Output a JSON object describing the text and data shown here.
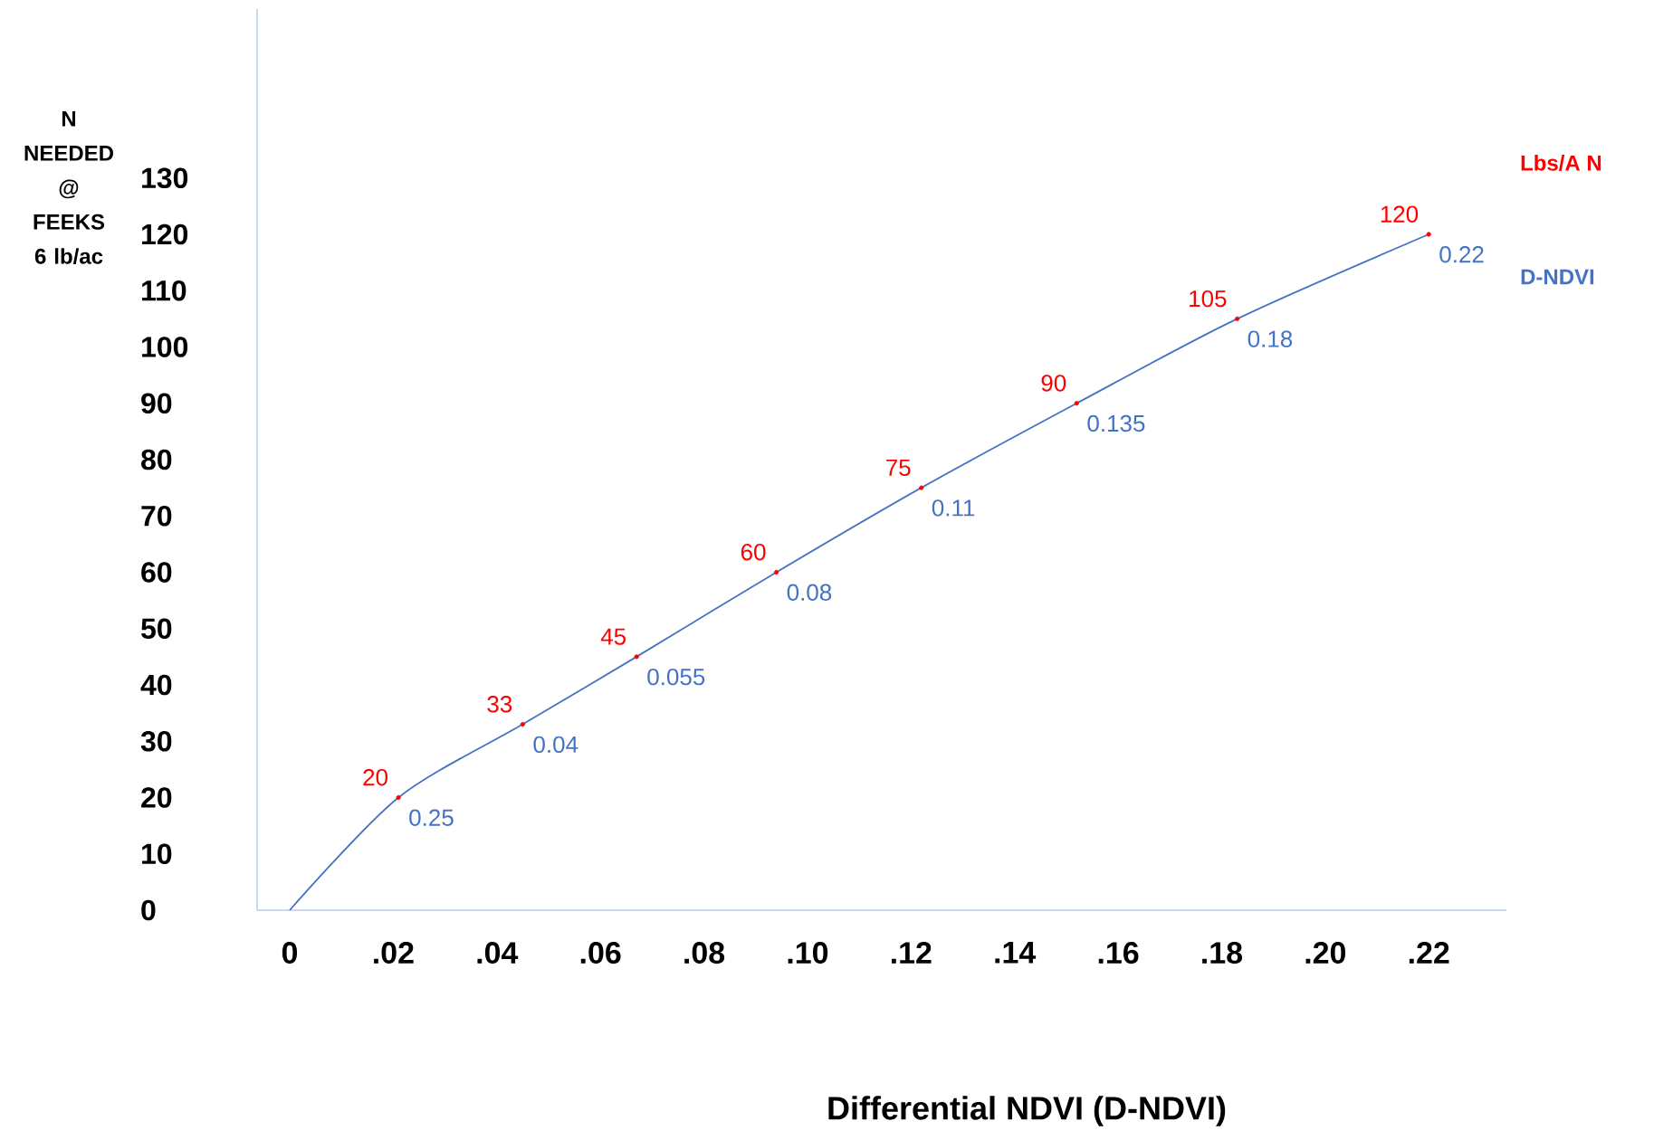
{
  "chart_data": {
    "type": "line",
    "xlabel": "Differential  NDVI    (D-NDVI)",
    "ylabel": "N NEEDED @ FEEKS 6 lb/ac",
    "xlim": [
      -0.0063,
      0.235
    ],
    "ylim": [
      0,
      160
    ],
    "xticks": [
      0,
      {
        "value": 0.02,
        "label": ".02"
      },
      {
        "value": 0.04,
        "label": ".04"
      },
      {
        "value": 0.06,
        "label": ".06"
      },
      {
        "value": 0.08,
        "label": ".08"
      },
      {
        "value": 0.1,
        "label": ".10"
      },
      {
        "value": 0.12,
        "label": ".12"
      },
      {
        "value": 0.14,
        "label": ".14"
      },
      {
        "value": 0.16,
        "label": ".16"
      },
      {
        "value": 0.18,
        "label": ".18"
      },
      {
        "value": 0.2,
        "label": ".20"
      },
      {
        "value": 0.22,
        "label": ".22"
      }
    ],
    "yticks": [
      0,
      10,
      20,
      30,
      40,
      50,
      60,
      70,
      80,
      90,
      100,
      110,
      120,
      130
    ],
    "annotations": [
      {
        "text": "0.25",
        "x": 0.021,
        "y": 20
      },
      {
        "text": "0.04",
        "x": 0.045,
        "y": 33
      },
      {
        "text": "0.055",
        "x": 0.067,
        "y": 45
      },
      {
        "text": "0.08",
        "x": 0.094,
        "y": 60
      },
      {
        "text": "0.11",
        "x": 0.122,
        "y": 75
      },
      {
        "text": "0.135",
        "x": 0.152,
        "y": 90
      },
      {
        "text": "0.18",
        "x": 0.183,
        "y": 105
      },
      {
        "text": "0.22",
        "x": 0.22,
        "y": 120
      }
    ],
    "series": [
      {
        "name": "D-NDVI",
        "color": "#4472c4",
        "x": [
          0,
          0.021,
          0.045,
          0.067,
          0.094,
          0.122,
          0.152,
          0.183,
          0.22
        ],
        "values": [
          0,
          20,
          33,
          45,
          60,
          75,
          90,
          105,
          120
        ]
      },
      {
        "type": "scatter",
        "name": "Lbs/A N",
        "color": "#ff0000",
        "x": [
          0.021,
          0.045,
          0.067,
          0.094,
          0.122,
          0.152,
          0.183,
          0.22
        ],
        "values": [
          20,
          33,
          45,
          60,
          75,
          90,
          105,
          120
        ],
        "value_labels": [
          "20",
          "33",
          "45",
          "60",
          "75",
          "90",
          "105",
          "120"
        ]
      }
    ]
  }
}
